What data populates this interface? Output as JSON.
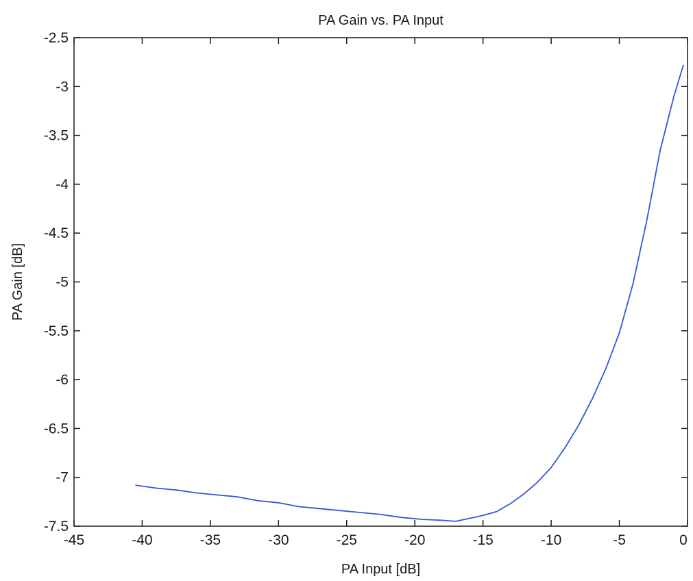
{
  "chart_data": {
    "type": "line",
    "title": "PA Gain vs. PA Input",
    "xlabel": "PA Input [dB]",
    "ylabel": "PA Gain [dB]",
    "xlim": [
      -45,
      0
    ],
    "ylim": [
      -7.5,
      -2.5
    ],
    "x_ticks": [
      -45,
      -40,
      -35,
      -30,
      -25,
      -20,
      -15,
      -10,
      -5,
      0
    ],
    "y_ticks": [
      -2.5,
      -3,
      -3.5,
      -4,
      -4.5,
      -5,
      -5.5,
      -6,
      -6.5,
      -7,
      -7.5
    ],
    "x_tick_labels": [
      "-45",
      "-40",
      "-35",
      "-30",
      "-25",
      "-20",
      "-15",
      "-10",
      "-5",
      "0"
    ],
    "y_tick_labels": [
      "-2.5",
      "-3",
      "-3.5",
      "-4",
      "-4.5",
      "-5",
      "-5.5",
      "-6",
      "-6.5",
      "-7",
      "-7.5"
    ],
    "grid": false,
    "series": [
      {
        "color": "#3355dd",
        "x": [
          -40.5,
          -39,
          -37.5,
          -36,
          -34.5,
          -33,
          -31.5,
          -30,
          -28.5,
          -27,
          -25.5,
          -24,
          -22.5,
          -21,
          -19.5,
          -18,
          -17,
          -16,
          -15,
          -14,
          -13,
          -12,
          -11,
          -10,
          -9,
          -8,
          -7,
          -6,
          -5,
          -4,
          -3,
          -2,
          -1,
          -0.3
        ],
        "y": [
          -7.08,
          -7.11,
          -7.13,
          -7.16,
          -7.18,
          -7.2,
          -7.24,
          -7.26,
          -7.3,
          -7.32,
          -7.34,
          -7.36,
          -7.38,
          -7.41,
          -7.43,
          -7.44,
          -7.45,
          -7.42,
          -7.39,
          -7.35,
          -7.27,
          -7.17,
          -7.05,
          -6.9,
          -6.7,
          -6.47,
          -6.2,
          -5.89,
          -5.52,
          -5.02,
          -4.38,
          -3.65,
          -3.1,
          -2.78
        ]
      }
    ]
  }
}
